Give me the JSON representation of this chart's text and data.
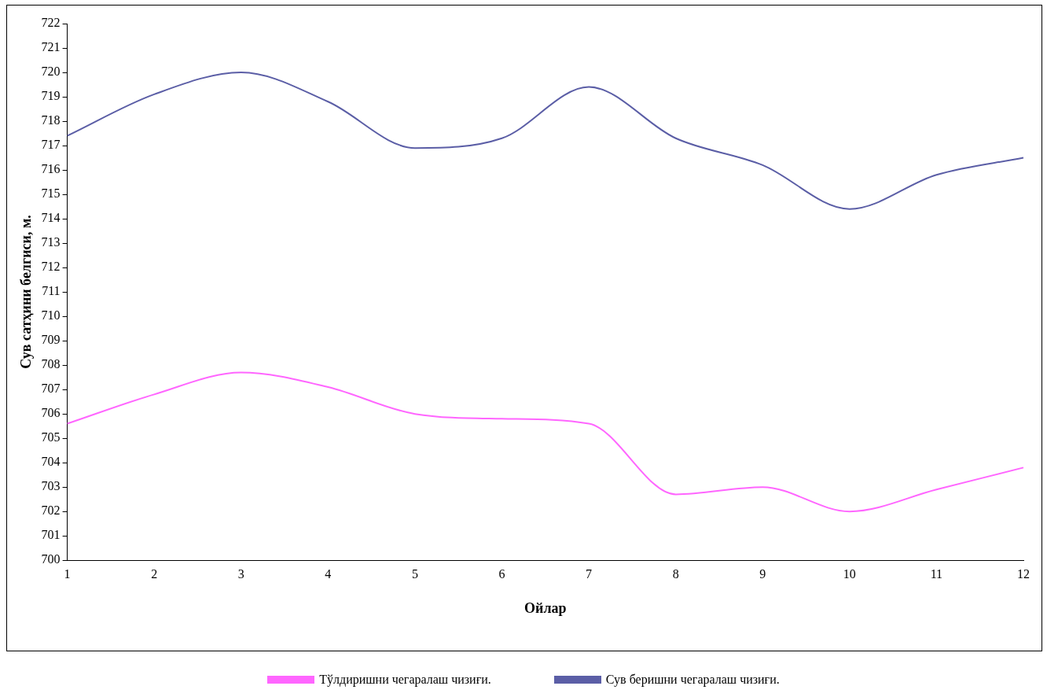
{
  "chart_data": {
    "type": "line",
    "xlabel": "Ойлар",
    "ylabel": "Сув сатҳини белгиси, м.",
    "categories": [
      "1",
      "2",
      "3",
      "4",
      "5",
      "6",
      "7",
      "8",
      "9",
      "10",
      "11",
      "12"
    ],
    "series": [
      {
        "name": "Тўлдиришни чегаралаш чизиғи.",
        "color": "#ff66ff",
        "values": [
          705.6,
          706.8,
          707.7,
          707.1,
          706.0,
          705.8,
          705.6,
          702.7,
          703.0,
          702.0,
          702.9,
          703.8
        ]
      },
      {
        "name": "Сув беришни чегаралаш чизиғи.",
        "color": "#5b5ea6",
        "values": [
          717.4,
          719.1,
          720.0,
          718.8,
          716.9,
          717.3,
          719.4,
          717.3,
          716.2,
          714.4,
          715.8,
          716.5
        ]
      }
    ],
    "ylim": [
      700,
      722
    ],
    "yticks": [
      700,
      701,
      702,
      703,
      704,
      705,
      706,
      707,
      708,
      709,
      710,
      711,
      712,
      713,
      714,
      715,
      716,
      717,
      718,
      719,
      720,
      721,
      722
    ],
    "grid": false,
    "legend": "bottom",
    "marker": "none",
    "line_style": "solid"
  }
}
